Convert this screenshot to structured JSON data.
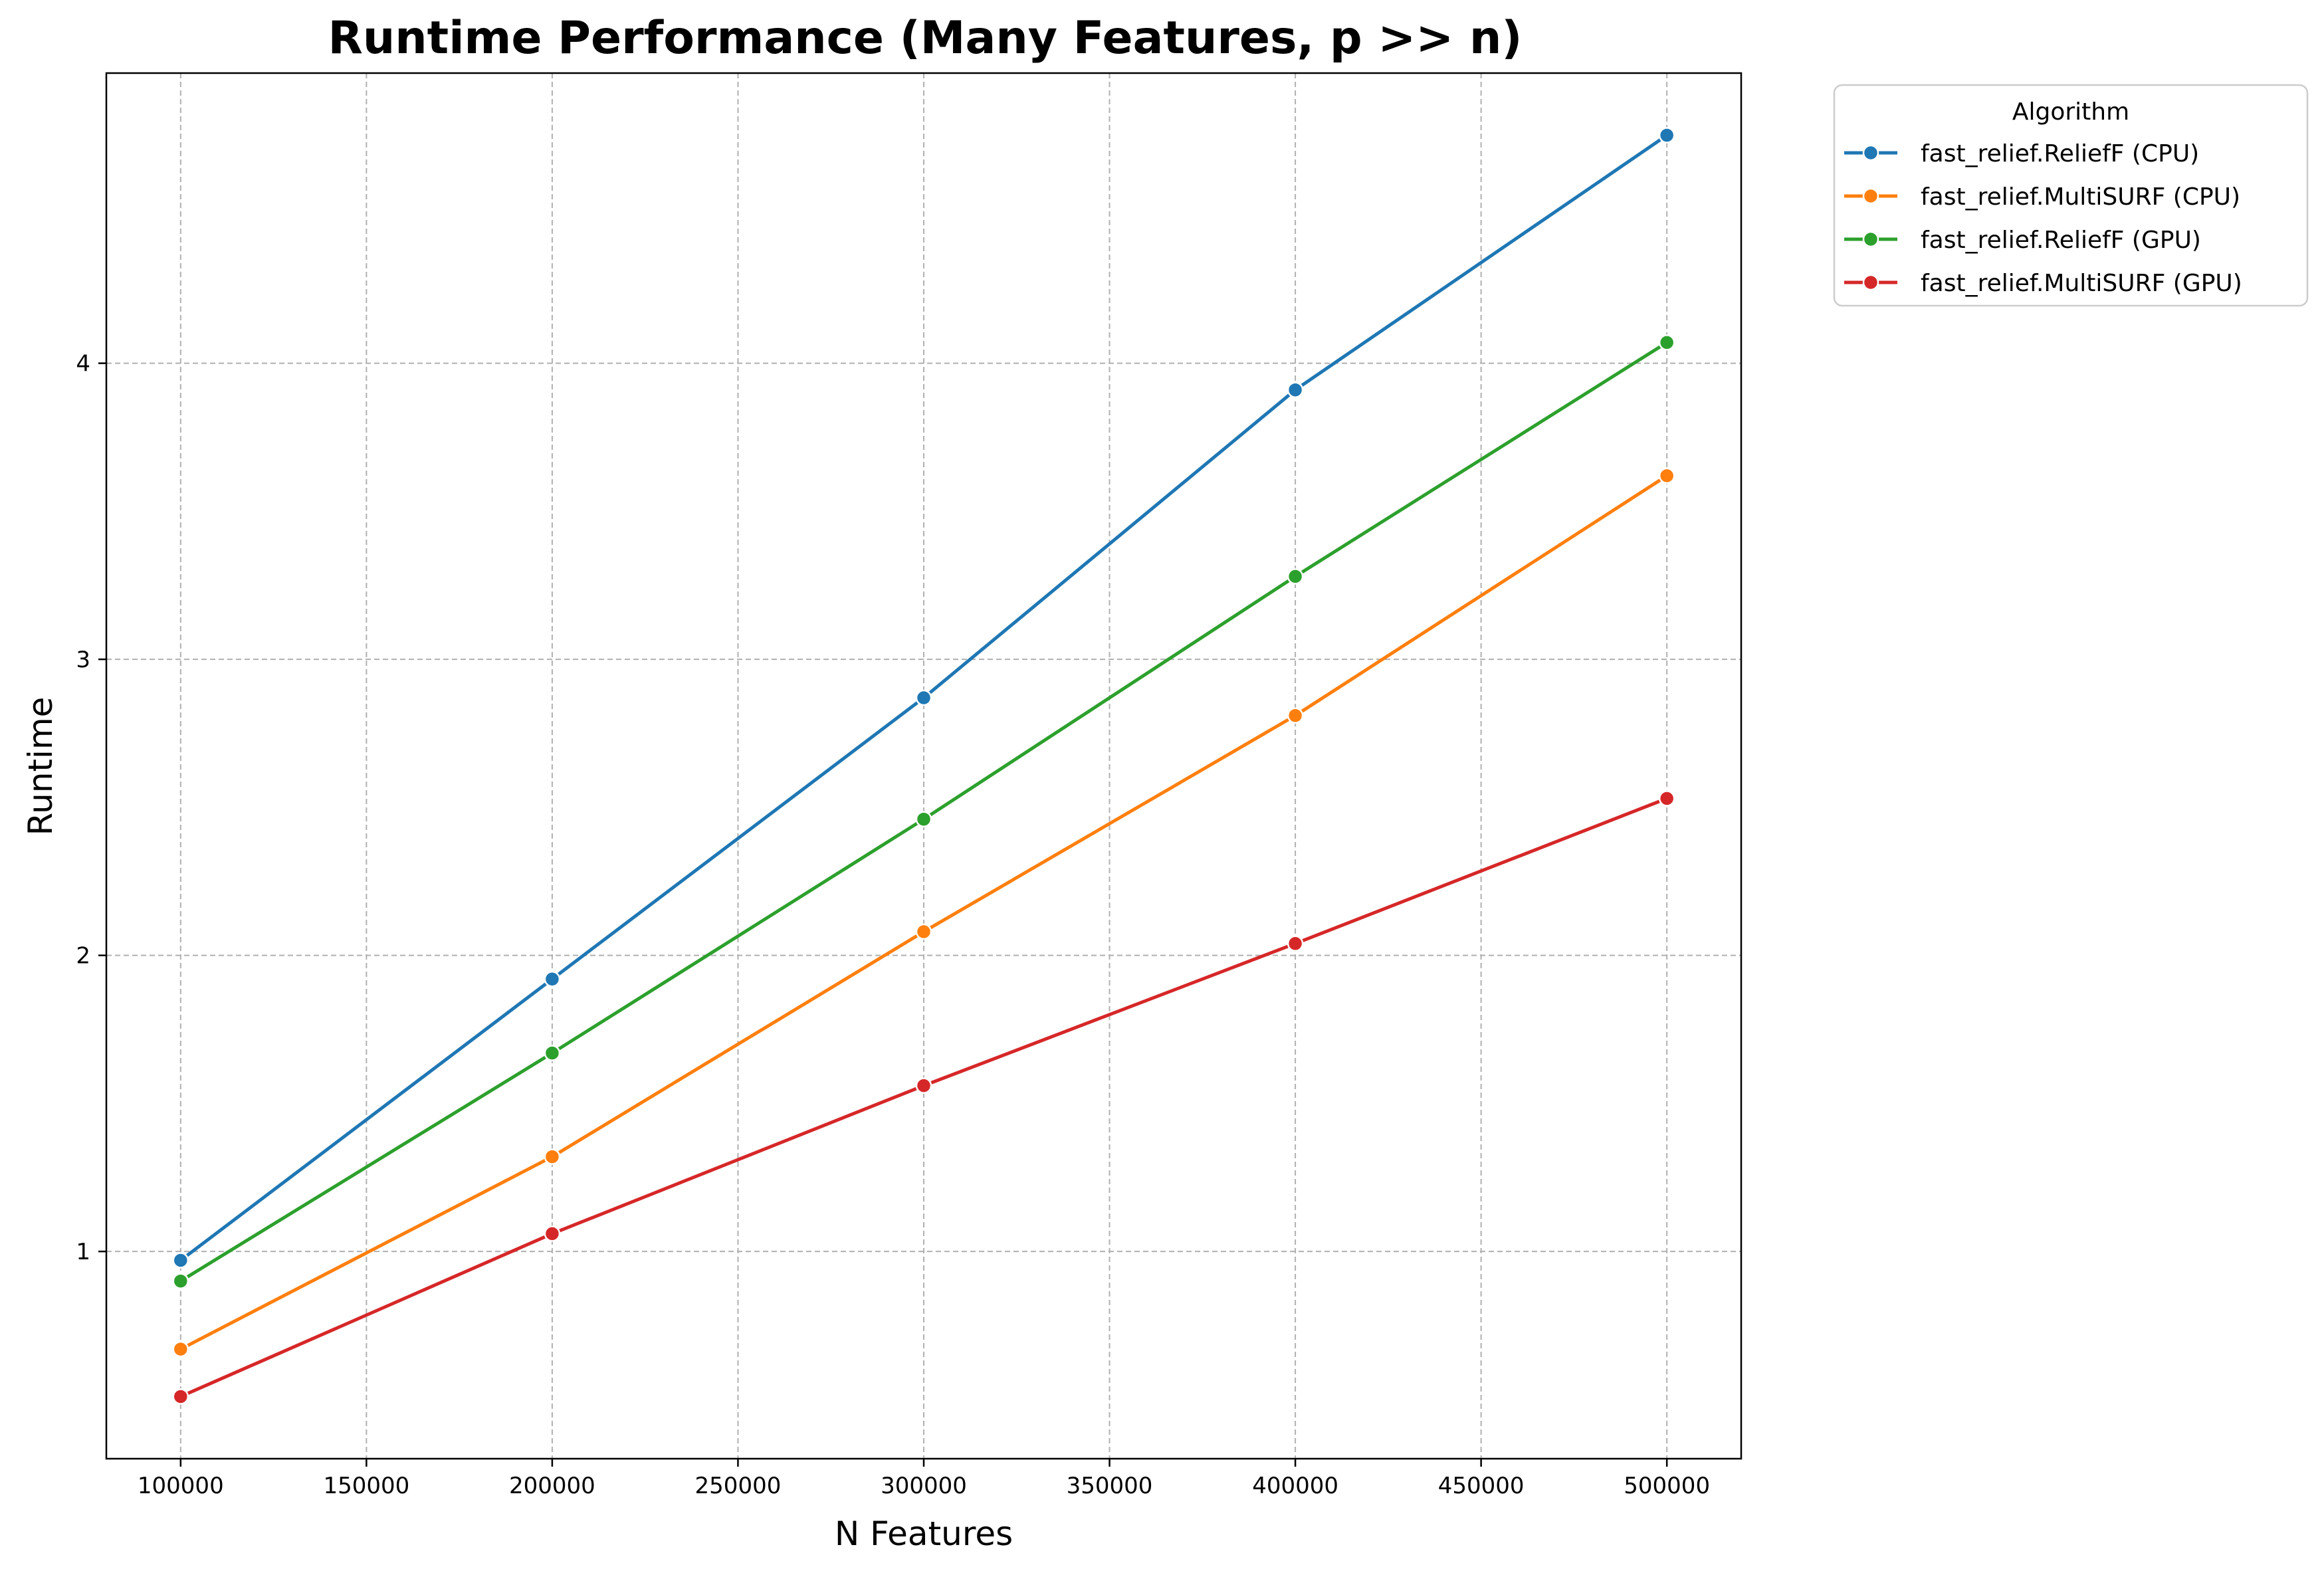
{
  "chart_data": {
    "type": "line",
    "title": "Runtime Performance (Many Features, p >> n)",
    "xlabel": "N Features",
    "ylabel": "Runtime",
    "x": [
      100000,
      200000,
      300000,
      400000,
      500000
    ],
    "xlim": [
      80000,
      520000
    ],
    "ylim": [
      0.3,
      4.98
    ],
    "xticks": [
      "100000",
      "150000",
      "200000",
      "250000",
      "300000",
      "350000",
      "400000",
      "450000",
      "500000"
    ],
    "yticks": [
      "1",
      "2",
      "3",
      "4"
    ],
    "grid": true,
    "legend": {
      "title": "Algorithm",
      "placement": "outside-top-right"
    },
    "series": [
      {
        "name": "fast_relief.ReliefF (CPU)",
        "color": "#1f77b4",
        "values": [
          0.97,
          1.92,
          2.87,
          3.91,
          4.77
        ]
      },
      {
        "name": "fast_relief.MultiSURF (CPU)",
        "color": "#ff7f0e",
        "values": [
          0.67,
          1.32,
          2.08,
          2.81,
          3.62
        ]
      },
      {
        "name": "fast_relief.ReliefF (GPU)",
        "color": "#2ca02c",
        "values": [
          0.9,
          1.67,
          2.46,
          3.28,
          4.07
        ]
      },
      {
        "name": "fast_relief.MultiSURF (GPU)",
        "color": "#d62728",
        "values": [
          0.51,
          1.06,
          1.56,
          2.04,
          2.53
        ]
      }
    ]
  }
}
